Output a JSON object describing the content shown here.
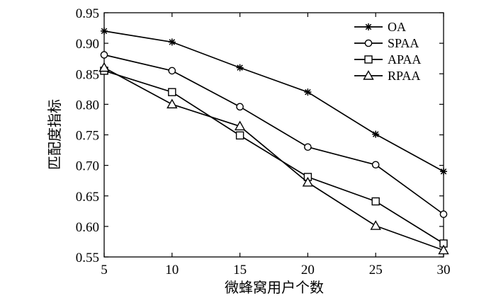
{
  "chart_data": {
    "type": "line",
    "title": "",
    "xlabel": "微蜂窝用户个数",
    "ylabel": "匹配度指标",
    "x": [
      5,
      10,
      15,
      20,
      25,
      30
    ],
    "xlim": [
      5,
      30
    ],
    "ylim": [
      0.55,
      0.95
    ],
    "xticks": [
      5,
      10,
      15,
      20,
      25,
      30
    ],
    "yticks": [
      0.55,
      0.6,
      0.65,
      0.7,
      0.75,
      0.8,
      0.85,
      0.9,
      0.95
    ],
    "grid": false,
    "legend_position": "top-right",
    "series": [
      {
        "name": "OA",
        "marker": "asterisk",
        "values": [
          0.92,
          0.902,
          0.86,
          0.82,
          0.751,
          0.69
        ]
      },
      {
        "name": "SPAA",
        "marker": "circle",
        "values": [
          0.881,
          0.855,
          0.796,
          0.73,
          0.701,
          0.62
        ]
      },
      {
        "name": "APAA",
        "marker": "square",
        "values": [
          0.855,
          0.82,
          0.749,
          0.681,
          0.641,
          0.572
        ]
      },
      {
        "name": "RPAA",
        "marker": "triangle",
        "values": [
          0.86,
          0.8,
          0.764,
          0.672,
          0.601,
          0.561
        ]
      }
    ],
    "color": "#000000"
  }
}
